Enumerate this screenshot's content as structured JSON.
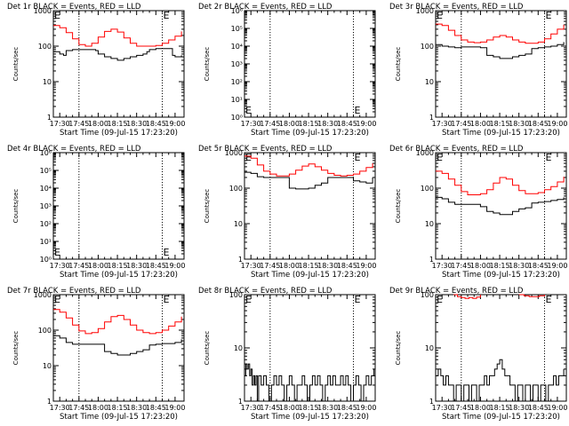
{
  "colors": {
    "events": "#000000",
    "lld": "#ff0000",
    "axis": "#000000",
    "background": "#ffffff"
  },
  "common": {
    "xticks": [
      "17:30",
      "17:45",
      "18:00",
      "18:15",
      "18:30",
      "18:45",
      "19:00"
    ],
    "xlabel": "Start Time (09-Jul-15 17:23:20)",
    "ylabel": "Counts/sec",
    "x_range_minutes": [
      -5,
      97
    ],
    "event_markers_minutes": [
      15,
      80
    ],
    "marker_letter": "E"
  },
  "chart_data": [
    {
      "type": "line",
      "title": "Det 1r BLACK = Events, RED = LLD",
      "yscale": "log",
      "ylim": [
        1,
        1000
      ],
      "yticks": [
        {
          "v": 1,
          "t": "1"
        },
        {
          "v": 10,
          "t": "10"
        },
        {
          "v": 100,
          "t": "100"
        },
        {
          "v": 1000,
          "t": "1000"
        }
      ],
      "series": [
        {
          "color": "red",
          "x": [
            -5,
            0,
            5,
            10,
            15,
            20,
            25,
            30,
            35,
            40,
            45,
            50,
            55,
            60,
            65,
            70,
            75,
            80,
            85,
            90,
            95
          ],
          "y": [
            380,
            330,
            240,
            160,
            110,
            100,
            120,
            180,
            260,
            300,
            250,
            170,
            120,
            100,
            100,
            100,
            105,
            120,
            150,
            190,
            260
          ]
        },
        {
          "color": "black",
          "x": [
            -5,
            0,
            3,
            5,
            10,
            15,
            20,
            25,
            28,
            30,
            35,
            40,
            45,
            50,
            55,
            60,
            65,
            68,
            70,
            75,
            80,
            85,
            88,
            90,
            95
          ],
          "y": [
            70,
            60,
            55,
            75,
            80,
            80,
            80,
            80,
            75,
            60,
            50,
            45,
            40,
            45,
            50,
            55,
            60,
            70,
            80,
            85,
            85,
            85,
            55,
            50,
            55
          ]
        }
      ]
    },
    {
      "type": "line",
      "title": "Det 2r BLACK = Events, RED = LLD",
      "yscale": "log",
      "ylim": [
        1,
        1000000
      ],
      "yticks": [
        {
          "v": 1,
          "t": "10⁰"
        },
        {
          "v": 10,
          "t": "10¹"
        },
        {
          "v": 100,
          "t": "10²"
        },
        {
          "v": 1000,
          "t": "10³"
        },
        {
          "v": 10000,
          "t": "10⁴"
        },
        {
          "v": 100000,
          "t": "10⁵"
        },
        {
          "v": 1000000,
          "t": "10⁶"
        }
      ],
      "series": []
    },
    {
      "type": "line",
      "title": "Det 3r BLACK = Events, RED = LLD",
      "yscale": "log",
      "ylim": [
        1,
        1000
      ],
      "yticks": [
        {
          "v": 1,
          "t": "1"
        },
        {
          "v": 10,
          "t": "10"
        },
        {
          "v": 100,
          "t": "100"
        },
        {
          "v": 1000,
          "t": "1000"
        }
      ],
      "series": [
        {
          "color": "red",
          "x": [
            -5,
            0,
            5,
            10,
            15,
            20,
            25,
            30,
            35,
            40,
            45,
            50,
            55,
            60,
            65,
            70,
            75,
            80,
            85,
            90,
            95
          ],
          "y": [
            420,
            380,
            280,
            200,
            150,
            130,
            125,
            130,
            150,
            180,
            200,
            180,
            150,
            130,
            120,
            120,
            130,
            160,
            220,
            300,
            400
          ]
        },
        {
          "color": "black",
          "x": [
            -5,
            0,
            5,
            10,
            15,
            20,
            25,
            30,
            35,
            40,
            45,
            50,
            55,
            60,
            65,
            70,
            75,
            80,
            85,
            90,
            95
          ],
          "y": [
            110,
            100,
            95,
            90,
            95,
            95,
            95,
            90,
            55,
            50,
            45,
            45,
            50,
            55,
            60,
            85,
            90,
            95,
            100,
            110,
            130
          ]
        }
      ]
    },
    {
      "type": "line",
      "title": "Det 4r BLACK = Events, RED = LLD",
      "yscale": "log",
      "ylim": [
        1,
        1000000
      ],
      "yticks": [
        {
          "v": 1,
          "t": "10⁰"
        },
        {
          "v": 10,
          "t": "10¹"
        },
        {
          "v": 100,
          "t": "10²"
        },
        {
          "v": 1000,
          "t": "10³"
        },
        {
          "v": 10000,
          "t": "10⁴"
        },
        {
          "v": 100000,
          "t": "10⁵"
        },
        {
          "v": 1000000,
          "t": "10⁶"
        }
      ],
      "series": []
    },
    {
      "type": "line",
      "title": "Det 5r BLACK = Events, RED = LLD",
      "yscale": "log",
      "ylim": [
        1,
        1000
      ],
      "yticks": [
        {
          "v": 1,
          "t": "1"
        },
        {
          "v": 10,
          "t": "10"
        },
        {
          "v": 100,
          "t": "100"
        },
        {
          "v": 1000,
          "t": "1000"
        }
      ],
      "series": [
        {
          "color": "red",
          "x": [
            -5,
            0,
            5,
            10,
            15,
            20,
            25,
            30,
            35,
            40,
            45,
            50,
            55,
            60,
            65,
            70,
            75,
            80,
            85,
            90,
            95
          ],
          "y": [
            800,
            700,
            450,
            300,
            250,
            220,
            220,
            250,
            320,
            420,
            480,
            400,
            320,
            260,
            230,
            220,
            230,
            250,
            300,
            380,
            500
          ]
        },
        {
          "color": "black",
          "x": [
            -5,
            0,
            5,
            10,
            15,
            20,
            25,
            30,
            35,
            40,
            45,
            50,
            55,
            60,
            65,
            70,
            75,
            80,
            85,
            90,
            95
          ],
          "y": [
            280,
            260,
            210,
            200,
            200,
            200,
            200,
            100,
            95,
            95,
            100,
            120,
            140,
            200,
            200,
            200,
            200,
            160,
            150,
            140,
            200
          ]
        }
      ]
    },
    {
      "type": "line",
      "title": "Det 6r BLACK = Events, RED = LLD",
      "yscale": "log",
      "ylim": [
        1,
        1000
      ],
      "yticks": [
        {
          "v": 1,
          "t": "1"
        },
        {
          "v": 10,
          "t": "10"
        },
        {
          "v": 100,
          "t": "100"
        },
        {
          "v": 1000,
          "t": "1000"
        }
      ],
      "series": [
        {
          "color": "red",
          "x": [
            -5,
            0,
            5,
            10,
            15,
            20,
            25,
            30,
            35,
            40,
            45,
            50,
            55,
            60,
            65,
            70,
            75,
            80,
            85,
            90,
            95
          ],
          "y": [
            300,
            260,
            180,
            120,
            80,
            65,
            65,
            70,
            90,
            140,
            200,
            180,
            120,
            85,
            70,
            70,
            75,
            90,
            110,
            150,
            210
          ]
        },
        {
          "color": "black",
          "x": [
            -5,
            0,
            5,
            10,
            15,
            20,
            25,
            30,
            35,
            40,
            45,
            50,
            55,
            60,
            65,
            70,
            75,
            80,
            85,
            90,
            95
          ],
          "y": [
            55,
            50,
            40,
            35,
            35,
            35,
            35,
            30,
            22,
            20,
            18,
            18,
            22,
            26,
            28,
            38,
            40,
            42,
            45,
            48,
            55
          ]
        }
      ]
    },
    {
      "type": "line",
      "title": "Det 7r BLACK = Events, RED = LLD",
      "yscale": "log",
      "ylim": [
        1,
        1000
      ],
      "yticks": [
        {
          "v": 1,
          "t": "1"
        },
        {
          "v": 10,
          "t": "10"
        },
        {
          "v": 100,
          "t": "100"
        },
        {
          "v": 1000,
          "t": "1000"
        }
      ],
      "series": [
        {
          "color": "red",
          "x": [
            -5,
            0,
            5,
            10,
            15,
            20,
            25,
            30,
            35,
            40,
            45,
            50,
            55,
            60,
            65,
            70,
            75,
            80,
            85,
            90,
            95
          ],
          "y": [
            380,
            320,
            220,
            140,
            95,
            80,
            85,
            110,
            170,
            240,
            260,
            200,
            140,
            100,
            85,
            80,
            85,
            100,
            130,
            170,
            240
          ]
        },
        {
          "color": "black",
          "x": [
            -5,
            0,
            5,
            10,
            15,
            20,
            25,
            30,
            35,
            40,
            45,
            50,
            55,
            60,
            65,
            70,
            75,
            80,
            85,
            90,
            95
          ],
          "y": [
            70,
            60,
            45,
            40,
            40,
            40,
            40,
            40,
            25,
            22,
            20,
            20,
            22,
            25,
            28,
            38,
            40,
            42,
            42,
            45,
            55
          ]
        }
      ]
    },
    {
      "type": "line",
      "title": "Det 8r BLACK = Events, RED = LLD",
      "yscale": "log",
      "ylim": [
        1,
        100
      ],
      "yticks": [
        {
          "v": 1,
          "t": "1"
        },
        {
          "v": 10,
          "t": "10"
        },
        {
          "v": 100,
          "t": "100"
        }
      ],
      "series": [
        {
          "color": "black",
          "x": [
            -5,
            -4,
            -3,
            -2,
            -1,
            0,
            1,
            2,
            3,
            4,
            5,
            6,
            8,
            10,
            12,
            14,
            16,
            18,
            20,
            22,
            24,
            26,
            28,
            30,
            32,
            34,
            36,
            38,
            40,
            42,
            44,
            46,
            48,
            50,
            52,
            54,
            56,
            58,
            60,
            62,
            64,
            66,
            68,
            70,
            72,
            74,
            76,
            78,
            80,
            82,
            84,
            86,
            88,
            90,
            92,
            94,
            96
          ],
          "y": [
            3,
            5,
            4,
            5,
            3,
            4,
            2,
            3,
            2,
            3,
            1,
            3,
            2,
            3,
            2,
            1,
            2,
            3,
            2,
            3,
            2,
            1,
            2,
            3,
            2,
            1,
            2,
            2,
            3,
            2,
            1,
            2,
            3,
            2,
            3,
            2,
            1,
            2,
            3,
            2,
            3,
            2,
            2,
            3,
            2,
            3,
            2,
            1,
            2,
            3,
            2,
            1,
            2,
            3,
            2,
            3,
            4
          ]
        }
      ]
    },
    {
      "type": "line",
      "title": "Det 9r BLACK = Events, RED = LLD",
      "yscale": "log",
      "ylim": [
        1,
        100
      ],
      "yticks": [
        {
          "v": 1,
          "t": "1"
        },
        {
          "v": 10,
          "t": "10"
        },
        {
          "v": 100,
          "t": "100"
        }
      ],
      "series": [
        {
          "color": "red",
          "x": [
            9,
            12,
            15,
            18,
            21,
            24,
            27,
            30
          ],
          "y": [
            100,
            92,
            88,
            85,
            88,
            85,
            90,
            100
          ]
        },
        {
          "color": "red",
          "x": [
            60,
            64,
            68,
            72,
            76,
            80
          ],
          "y": [
            100,
            95,
            92,
            92,
            95,
            100
          ]
        },
        {
          "color": "black",
          "x": [
            -5,
            -3,
            -1,
            1,
            3,
            5,
            7,
            9,
            11,
            13,
            15,
            17,
            19,
            21,
            23,
            25,
            27,
            29,
            31,
            33,
            35,
            37,
            39,
            41,
            43,
            45,
            47,
            49,
            51,
            53,
            55,
            57,
            59,
            61,
            63,
            65,
            67,
            69,
            71,
            73,
            75,
            77,
            79,
            81,
            83,
            85,
            87,
            89,
            91,
            93,
            95
          ],
          "y": [
            3,
            4,
            3,
            2,
            3,
            2,
            2,
            1,
            2,
            2,
            1,
            2,
            2,
            1,
            2,
            2,
            1,
            2,
            2,
            3,
            2,
            3,
            3,
            4,
            5,
            6,
            4,
            3,
            3,
            2,
            2,
            1,
            2,
            2,
            1,
            2,
            2,
            1,
            2,
            2,
            1,
            2,
            2,
            1,
            2,
            2,
            3,
            2,
            3,
            3,
            4
          ]
        }
      ]
    }
  ]
}
